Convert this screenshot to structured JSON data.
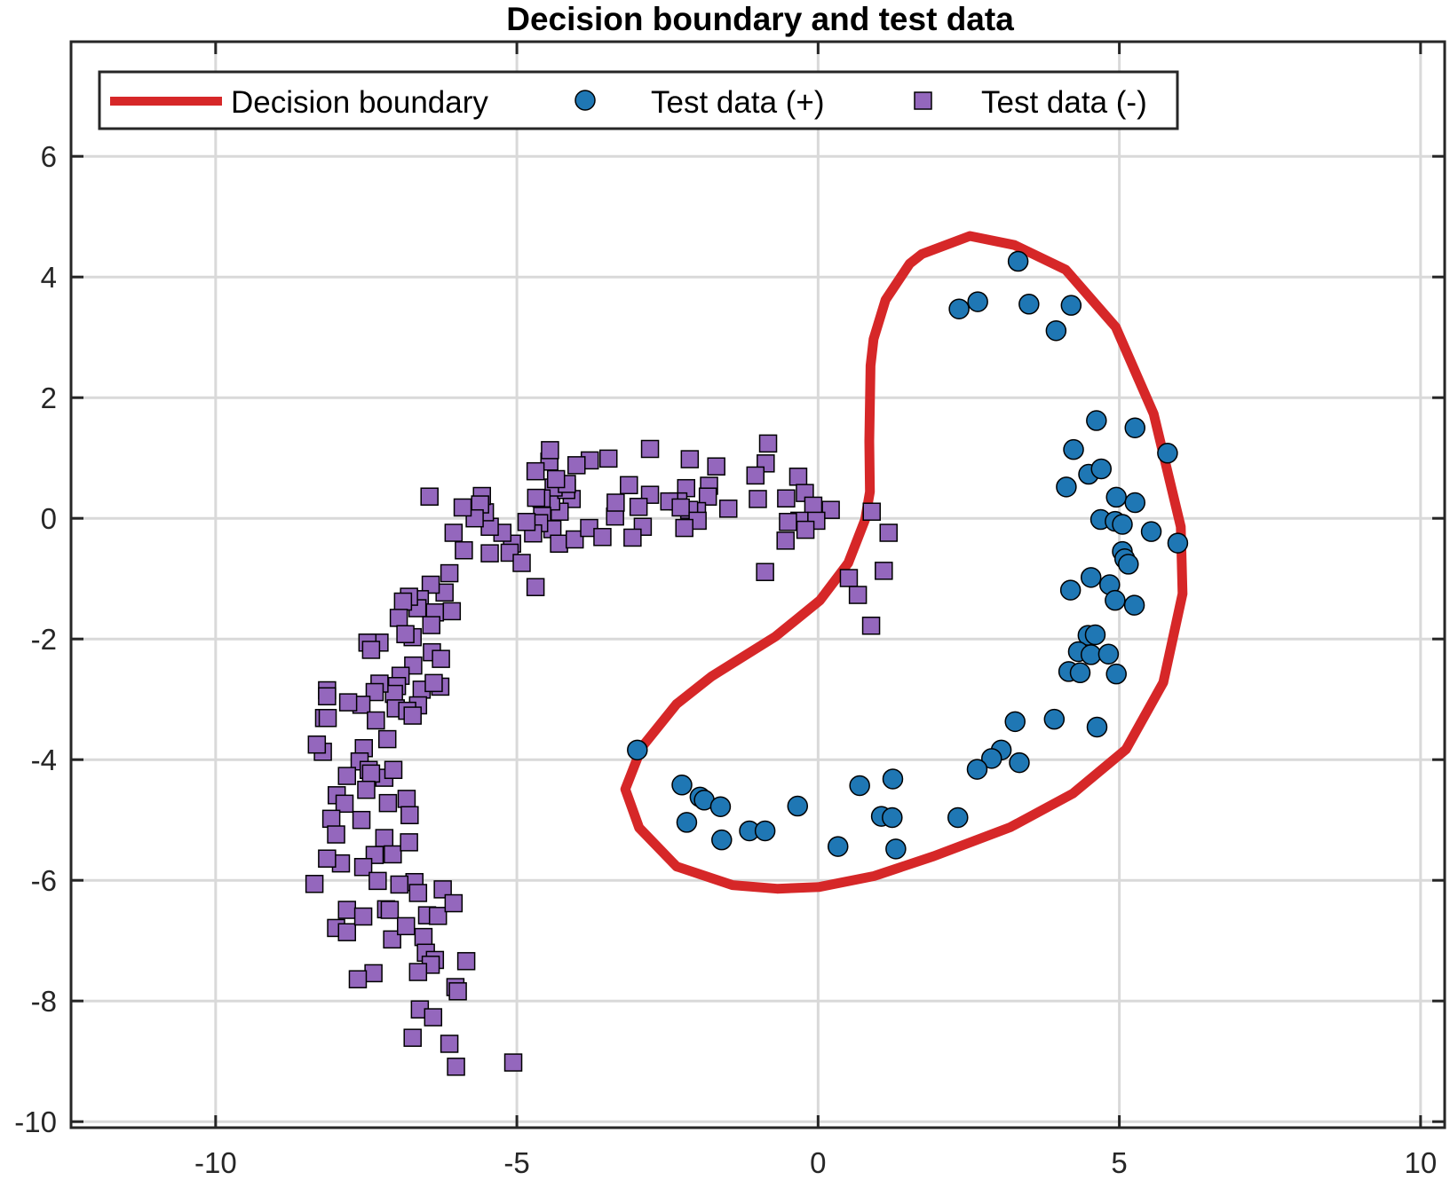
{
  "chart_data": {
    "type": "scatter",
    "title": "Decision boundary and test data",
    "xlabel": "",
    "ylabel": "",
    "xlim": [
      -12.4,
      10.4
    ],
    "ylim": [
      -10.1,
      7.9
    ],
    "xticks": [
      -10,
      -5,
      0,
      5,
      10
    ],
    "yticks": [
      -10,
      -8,
      -6,
      -4,
      -2,
      0,
      2,
      4,
      6
    ],
    "xtick_labels": [
      "-10",
      "-5",
      "0",
      "5",
      "10"
    ],
    "ytick_labels": [
      "-10",
      "-8",
      "-6",
      "-4",
      "-2",
      "0",
      "2",
      "4",
      "6"
    ],
    "grid": true,
    "legend_position": "top",
    "legend": {
      "boundary": "Decision boundary",
      "positive": "Test data (+)",
      "negative": "Test data (-)"
    },
    "colors": {
      "boundary": "#d62728",
      "positive": "#1f77b4",
      "negative": "#9467bd",
      "marker_edge": "#000000",
      "grid": "#d9d9d9",
      "axes": "#262626"
    },
    "boundary": [
      [
        2.52,
        4.68
      ],
      [
        3.26,
        4.53
      ],
      [
        4.11,
        4.12
      ],
      [
        4.94,
        3.17
      ],
      [
        5.57,
        1.73
      ],
      [
        6.02,
        -0.14
      ],
      [
        6.05,
        -1.25
      ],
      [
        5.73,
        -2.72
      ],
      [
        5.11,
        -3.83
      ],
      [
        4.23,
        -4.56
      ],
      [
        3.19,
        -5.12
      ],
      [
        1.92,
        -5.6
      ],
      [
        0.93,
        -5.93
      ],
      [
        0.02,
        -6.11
      ],
      [
        -0.68,
        -6.14
      ],
      [
        -1.42,
        -6.08
      ],
      [
        -2.35,
        -5.77
      ],
      [
        -2.97,
        -5.13
      ],
      [
        -3.2,
        -4.49
      ],
      [
        -2.93,
        -3.8
      ],
      [
        -2.35,
        -3.08
      ],
      [
        -1.77,
        -2.62
      ],
      [
        -0.71,
        -1.96
      ],
      [
        0.03,
        -1.36
      ],
      [
        0.5,
        -0.74
      ],
      [
        0.78,
        -0.02
      ],
      [
        0.86,
        0.44
      ],
      [
        0.85,
        1.28
      ],
      [
        0.87,
        2.53
      ],
      [
        0.92,
        2.97
      ],
      [
        1.12,
        3.62
      ],
      [
        1.52,
        4.22
      ],
      [
        1.72,
        4.38
      ]
    ],
    "positive": [
      [
        3.32,
        4.26
      ],
      [
        2.65,
        3.59
      ],
      [
        2.34,
        3.47
      ],
      [
        3.5,
        3.55
      ],
      [
        4.2,
        3.53
      ],
      [
        3.95,
        3.11
      ],
      [
        4.62,
        1.62
      ],
      [
        5.26,
        1.5
      ],
      [
        5.8,
        1.08
      ],
      [
        4.24,
        1.14
      ],
      [
        4.49,
        0.73
      ],
      [
        4.7,
        0.82
      ],
      [
        4.12,
        0.52
      ],
      [
        4.95,
        0.35
      ],
      [
        5.26,
        0.26
      ],
      [
        4.69,
        -0.02
      ],
      [
        4.93,
        -0.05
      ],
      [
        5.05,
        -0.1
      ],
      [
        5.53,
        -0.22
      ],
      [
        5.97,
        -0.41
      ],
      [
        5.05,
        -0.55
      ],
      [
        5.09,
        -0.67
      ],
      [
        5.15,
        -0.76
      ],
      [
        4.53,
        -0.98
      ],
      [
        4.19,
        -1.19
      ],
      [
        4.84,
        -1.1
      ],
      [
        4.93,
        -1.36
      ],
      [
        5.25,
        -1.44
      ],
      [
        4.48,
        -1.94
      ],
      [
        4.6,
        -1.93
      ],
      [
        4.32,
        -2.21
      ],
      [
        4.53,
        -2.26
      ],
      [
        4.82,
        -2.25
      ],
      [
        4.16,
        -2.54
      ],
      [
        4.35,
        -2.56
      ],
      [
        4.95,
        -2.58
      ],
      [
        3.92,
        -3.33
      ],
      [
        3.27,
        -3.37
      ],
      [
        4.63,
        -3.46
      ],
      [
        3.04,
        -3.84
      ],
      [
        2.88,
        -3.98
      ],
      [
        2.64,
        -4.16
      ],
      [
        3.34,
        -4.05
      ],
      [
        1.24,
        -4.32
      ],
      [
        0.69,
        -4.43
      ],
      [
        -2.26,
        -4.42
      ],
      [
        -1.96,
        -4.62
      ],
      [
        -1.89,
        -4.67
      ],
      [
        -1.62,
        -4.78
      ],
      [
        -0.34,
        -4.77
      ],
      [
        -2.18,
        -5.04
      ],
      [
        -1.14,
        -5.18
      ],
      [
        -0.88,
        -5.18
      ],
      [
        -1.6,
        -5.33
      ],
      [
        1.05,
        -4.94
      ],
      [
        1.23,
        -4.96
      ],
      [
        2.32,
        -4.96
      ],
      [
        0.33,
        -5.44
      ],
      [
        1.29,
        -5.48
      ],
      [
        -3.0,
        -3.84
      ]
    ],
    "negative": [
      [
        -0.83,
        1.24
      ],
      [
        -0.87,
        0.91
      ],
      [
        -1.04,
        0.71
      ],
      [
        -0.33,
        0.69
      ],
      [
        -0.22,
        0.42
      ],
      [
        -0.53,
        0.33
      ],
      [
        -1.0,
        0.32
      ],
      [
        -0.08,
        0.21
      ],
      [
        0.21,
        0.14
      ],
      [
        -0.03,
        -0.04
      ],
      [
        -0.31,
        -0.04
      ],
      [
        -0.5,
        -0.06
      ],
      [
        -0.21,
        -0.19
      ],
      [
        -0.54,
        -0.37
      ],
      [
        0.89,
        0.11
      ],
      [
        1.17,
        -0.24
      ],
      [
        1.09,
        -0.87
      ],
      [
        0.51,
        -0.99
      ],
      [
        -0.88,
        -0.89
      ],
      [
        0.66,
        -1.27
      ],
      [
        0.88,
        -1.78
      ],
      [
        -2.79,
        1.15
      ],
      [
        -2.13,
        0.98
      ],
      [
        -1.69,
        0.86
      ],
      [
        -2.19,
        0.5
      ],
      [
        -1.81,
        0.54
      ],
      [
        -1.83,
        0.36
      ],
      [
        -2.32,
        0.28
      ],
      [
        -1.49,
        0.16
      ],
      [
        -2.01,
        0.12
      ],
      [
        -2.47,
        0.28
      ],
      [
        -2.14,
        0.14
      ],
      [
        -2.28,
        0.18
      ],
      [
        -2.79,
        0.39
      ],
      [
        -2.98,
        0.19
      ],
      [
        -2.0,
        -0.04
      ],
      [
        -2.22,
        -0.16
      ],
      [
        -2.91,
        -0.14
      ],
      [
        -3.37,
        0.03
      ],
      [
        -3.36,
        0.26
      ],
      [
        -3.14,
        0.55
      ],
      [
        -3.48,
        0.99
      ],
      [
        -3.79,
        0.96
      ],
      [
        -4.17,
        0.5
      ],
      [
        -4.09,
        0.32
      ],
      [
        -4.29,
        0.11
      ],
      [
        -4.43,
        0.28
      ],
      [
        -4.18,
        0.47
      ],
      [
        -4.39,
        0.51
      ],
      [
        -4.59,
        0.33
      ],
      [
        -4.58,
        0.04
      ],
      [
        -4.41,
        -0.18
      ],
      [
        -4.3,
        -0.42
      ],
      [
        -4.04,
        -0.35
      ],
      [
        -3.8,
        -0.16
      ],
      [
        -3.58,
        -0.31
      ],
      [
        -3.08,
        -0.32
      ],
      [
        -4.17,
        0.57
      ],
      [
        -4.35,
        0.65
      ],
      [
        -4.46,
        0.94
      ],
      [
        -4.01,
        0.88
      ],
      [
        -4.45,
        1.13
      ],
      [
        -4.69,
        0.78
      ],
      [
        -4.68,
        0.34
      ],
      [
        -4.63,
        -0.08
      ],
      [
        -4.73,
        -0.25
      ],
      [
        -4.84,
        -0.06
      ],
      [
        -5.08,
        -0.42
      ],
      [
        -5.24,
        -0.24
      ],
      [
        -5.12,
        -0.57
      ],
      [
        -4.92,
        -0.74
      ],
      [
        -4.69,
        -1.14
      ],
      [
        -5.45,
        -0.14
      ],
      [
        -5.53,
        0.1
      ],
      [
        -5.58,
        0.37
      ],
      [
        -5.61,
        0.23
      ],
      [
        -5.7,
        0.0
      ],
      [
        -5.9,
        0.18
      ],
      [
        -6.05,
        -0.24
      ],
      [
        -6.45,
        0.36
      ],
      [
        -5.45,
        -0.58
      ],
      [
        -5.88,
        -0.53
      ],
      [
        -6.12,
        -0.91
      ],
      [
        -6.2,
        -1.23
      ],
      [
        -6.43,
        -1.1
      ],
      [
        -6.61,
        -1.34
      ],
      [
        -6.36,
        -1.56
      ],
      [
        -6.65,
        -1.49
      ],
      [
        -6.79,
        -1.3
      ],
      [
        -6.89,
        -1.38
      ],
      [
        -6.42,
        -1.77
      ],
      [
        -6.08,
        -1.54
      ],
      [
        -6.73,
        -1.97
      ],
      [
        -6.96,
        -1.65
      ],
      [
        -7.28,
        -2.06
      ],
      [
        -7.48,
        -2.06
      ],
      [
        -7.42,
        -2.18
      ],
      [
        -6.85,
        -1.92
      ],
      [
        -6.41,
        -2.22
      ],
      [
        -6.26,
        -2.33
      ],
      [
        -6.72,
        -2.44
      ],
      [
        -6.93,
        -2.61
      ],
      [
        -6.99,
        -2.78
      ],
      [
        -6.58,
        -2.84
      ],
      [
        -6.27,
        -2.79
      ],
      [
        -6.38,
        -2.73
      ],
      [
        -7.04,
        -2.91
      ],
      [
        -7.28,
        -2.74
      ],
      [
        -7.36,
        -2.88
      ],
      [
        -7.58,
        -3.09
      ],
      [
        -7.34,
        -3.35
      ],
      [
        -7.01,
        -3.15
      ],
      [
        -6.64,
        -3.1
      ],
      [
        -6.82,
        -3.19
      ],
      [
        -6.73,
        -3.27
      ],
      [
        -7.54,
        -3.81
      ],
      [
        -7.61,
        -4.03
      ],
      [
        -7.82,
        -4.27
      ],
      [
        -7.99,
        -4.59
      ],
      [
        -7.86,
        -4.73
      ],
      [
        -8.08,
        -4.98
      ],
      [
        -8.22,
        -3.87
      ],
      [
        -8.32,
        -3.75
      ],
      [
        -8.2,
        -3.31
      ],
      [
        -8.14,
        -3.31
      ],
      [
        -8.15,
        -2.85
      ],
      [
        -8.15,
        -2.95
      ],
      [
        -7.8,
        -3.05
      ],
      [
        -7.15,
        -3.66
      ],
      [
        -7.46,
        -4.17
      ],
      [
        -7.2,
        -4.3
      ],
      [
        -7.42,
        -4.23
      ],
      [
        -7.5,
        -4.5
      ],
      [
        -7.05,
        -4.17
      ],
      [
        -6.83,
        -4.65
      ],
      [
        -7.14,
        -4.72
      ],
      [
        -6.78,
        -4.92
      ],
      [
        -7.58,
        -5.0
      ],
      [
        -8.0,
        -5.24
      ],
      [
        -7.2,
        -5.3
      ],
      [
        -7.36,
        -5.58
      ],
      [
        -7.06,
        -5.57
      ],
      [
        -6.79,
        -5.37
      ],
      [
        -7.55,
        -5.78
      ],
      [
        -7.31,
        -6.01
      ],
      [
        -6.7,
        -6.03
      ],
      [
        -6.95,
        -6.07
      ],
      [
        -7.92,
        -5.72
      ],
      [
        -8.15,
        -5.64
      ],
      [
        -8.36,
        -6.06
      ],
      [
        -7.82,
        -6.49
      ],
      [
        -8.0,
        -6.79
      ],
      [
        -7.82,
        -6.86
      ],
      [
        -7.55,
        -6.6
      ],
      [
        -7.17,
        -6.48
      ],
      [
        -6.64,
        -6.21
      ],
      [
        -6.49,
        -6.58
      ],
      [
        -6.31,
        -6.59
      ],
      [
        -6.23,
        -6.15
      ],
      [
        -6.05,
        -6.38
      ],
      [
        -7.07,
        -6.98
      ],
      [
        -7.11,
        -6.49
      ],
      [
        -6.55,
        -6.94
      ],
      [
        -6.51,
        -7.2
      ],
      [
        -6.36,
        -7.32
      ],
      [
        -6.43,
        -7.4
      ],
      [
        -6.64,
        -7.52
      ],
      [
        -7.38,
        -7.54
      ],
      [
        -7.64,
        -7.64
      ],
      [
        -5.84,
        -7.34
      ],
      [
        -6.02,
        -7.77
      ],
      [
        -5.98,
        -7.84
      ],
      [
        -6.61,
        -8.14
      ],
      [
        -6.39,
        -8.27
      ],
      [
        -6.73,
        -8.61
      ],
      [
        -6.12,
        -8.71
      ],
      [
        -6.01,
        -9.09
      ],
      [
        -5.06,
        -9.02
      ],
      [
        -6.84,
        -6.76
      ]
    ]
  }
}
